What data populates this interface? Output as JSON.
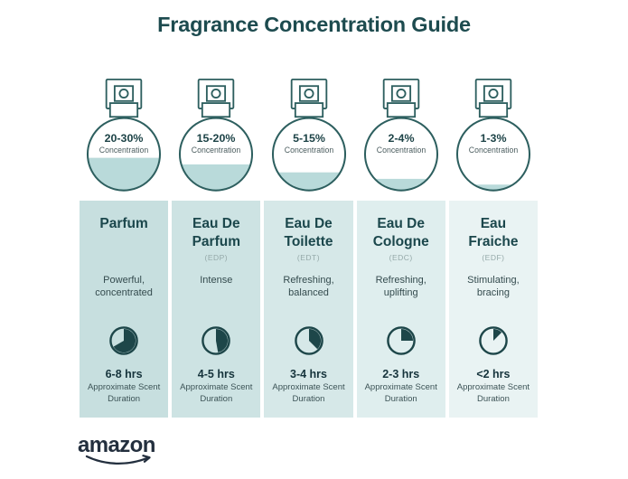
{
  "page": {
    "title": "Fragrance Concentration Guide",
    "brand": "amazon"
  },
  "colors": {
    "accent_dark": "#1d4b4f",
    "bottle_stroke": "#2d5f5f",
    "liquid": "#b9dada",
    "logo": "#232f3e",
    "abbr_gray": "#95a9a9"
  },
  "bottles": [
    {
      "range": "20-30%",
      "label": "Concentration",
      "fill_percent": 45
    },
    {
      "range": "15-20%",
      "label": "Concentration",
      "fill_percent": 36
    },
    {
      "range": "5-15%",
      "label": "Concentration",
      "fill_percent": 25
    },
    {
      "range": "2-4%",
      "label": "Concentration",
      "fill_percent": 16
    },
    {
      "range": "1-3%",
      "label": "Concentration",
      "fill_percent": 8
    }
  ],
  "columns": [
    {
      "name": "Parfum",
      "abbr": "",
      "description": "Powerful, concentrated",
      "duration": "6-8 hrs",
      "duration_note": "Approximate Scent Duration",
      "clock_degrees": 240,
      "bg": "#c7dfdf"
    },
    {
      "name": "Eau De Parfum",
      "abbr": "(EDP)",
      "description": "Intense",
      "duration": "4-5 hrs",
      "duration_note": "Approximate Scent Duration",
      "clock_degrees": 170,
      "bg": "#cde3e3"
    },
    {
      "name": "Eau De Toilette",
      "abbr": "(EDT)",
      "description": "Refreshing, balanced",
      "duration": "3-4 hrs",
      "duration_note": "Approximate Scent Duration",
      "clock_degrees": 135,
      "bg": "#d6e8e8"
    },
    {
      "name": "Eau De Cologne",
      "abbr": "(EDC)",
      "description": "Refreshing, uplifting",
      "duration": "2-3 hrs",
      "duration_note": "Approximate Scent Duration",
      "clock_degrees": 90,
      "bg": "#dfeeee"
    },
    {
      "name": "Eau Fraiche",
      "abbr": "(EDF)",
      "description": "Stimulating, bracing",
      "duration": "<2 hrs",
      "duration_note": "Approximate Scent Duration",
      "clock_degrees": 45,
      "bg": "#e9f3f3"
    }
  ]
}
